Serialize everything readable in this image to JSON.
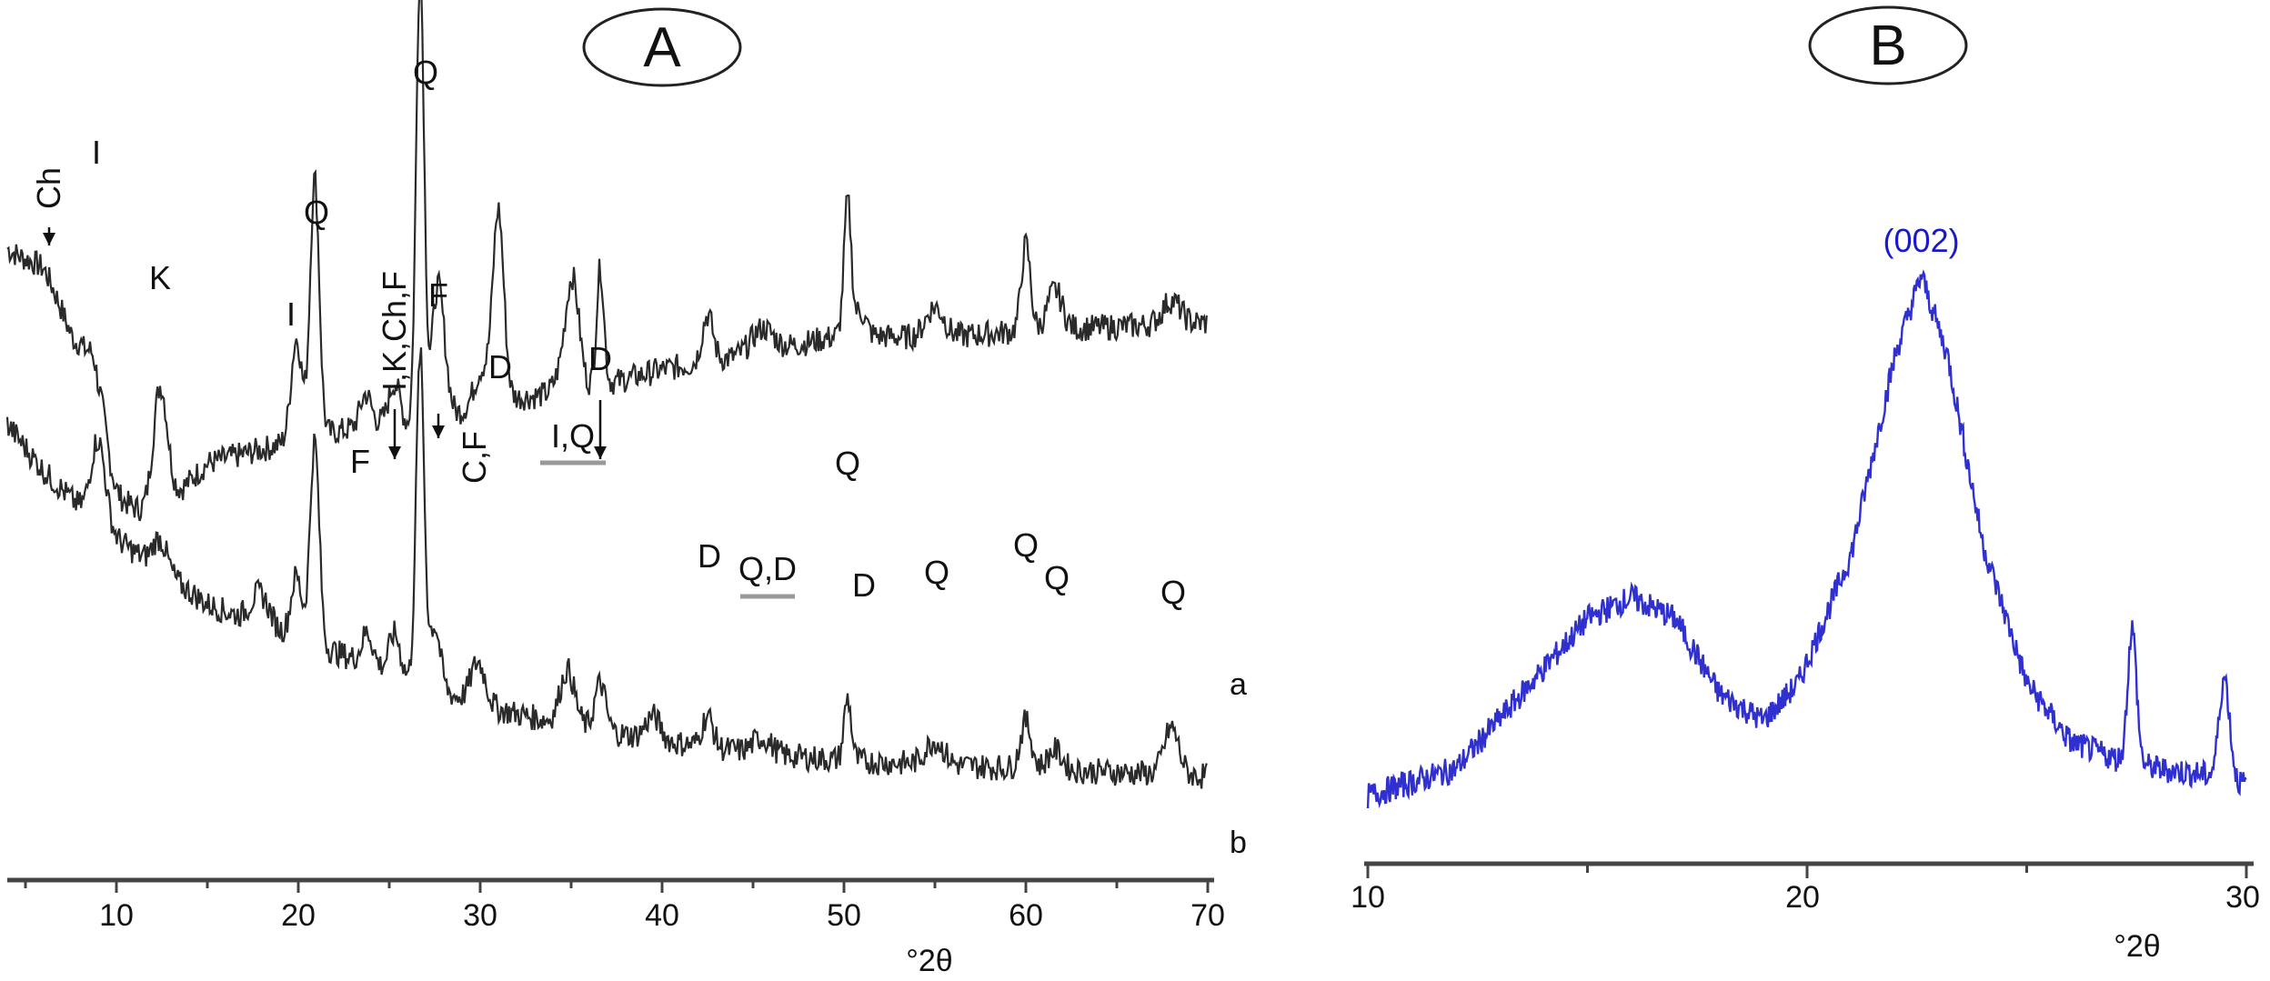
{
  "chart_data": [
    {
      "panel": "A",
      "type": "line",
      "xlabel": "°2θ",
      "xlim": [
        4,
        70
      ],
      "xticks": [
        10,
        20,
        30,
        40,
        50,
        60,
        70
      ],
      "colors": {
        "trace": "#2a2a2a",
        "axis": "#444444"
      },
      "series": [
        {
          "name": "a",
          "baseline": [
            [
              4,
              840
            ],
            [
              6,
              790
            ],
            [
              8,
              690
            ],
            [
              9,
              540
            ],
            [
              12,
              500
            ],
            [
              15,
              570
            ],
            [
              20,
              600
            ],
            [
              25,
              625
            ],
            [
              27,
              610
            ],
            [
              30,
              650
            ],
            [
              35,
              660
            ],
            [
              40,
              690
            ],
            [
              45,
              710
            ],
            [
              50,
              735
            ],
            [
              55,
              730
            ],
            [
              60,
              740
            ],
            [
              65,
              745
            ],
            [
              70,
              750
            ]
          ],
          "peaks": [
            [
              6.3,
              30,
              1.2
            ],
            [
              8.9,
              130,
              0.5
            ],
            [
              12.4,
              160,
              0.4
            ],
            [
              19.9,
              130,
              0.3
            ],
            [
              20.9,
              330,
              0.25
            ],
            [
              23.7,
              40,
              0.3
            ],
            [
              25.3,
              50,
              0.3
            ],
            [
              26.7,
              590,
              0.22
            ],
            [
              27.6,
              150,
              0.3
            ],
            [
              28.0,
              60,
              0.3
            ],
            [
              30.1,
              40,
              0.4
            ],
            [
              31.0,
              240,
              0.3
            ],
            [
              34.8,
              45,
              0.5
            ],
            [
              35.1,
              110,
              0.35
            ],
            [
              36.6,
              150,
              0.2
            ],
            [
              42.5,
              60,
              0.3
            ],
            [
              45.5,
              30,
              0.6
            ],
            [
              50.2,
              170,
              0.2
            ],
            [
              50.9,
              30,
              0.3
            ],
            [
              55.0,
              40,
              0.5
            ],
            [
              60.0,
              110,
              0.25
            ],
            [
              61.6,
              50,
              0.4
            ],
            [
              68.0,
              30,
              0.5
            ]
          ]
        },
        {
          "name": "b",
          "baseline": [
            [
              4,
              620
            ],
            [
              6,
              560
            ],
            [
              9,
              490
            ],
            [
              12,
              440
            ],
            [
              15,
              390
            ],
            [
              20,
              345
            ],
            [
              25,
              305
            ],
            [
              30,
              260
            ],
            [
              35,
              235
            ],
            [
              40,
              215
            ],
            [
              45,
              200
            ],
            [
              50,
              190
            ],
            [
              55,
              185
            ],
            [
              60,
              180
            ],
            [
              65,
              175
            ],
            [
              70,
              170
            ]
          ],
          "peaks": [
            [
              9.0,
              110,
              0.4
            ],
            [
              12.4,
              40,
              0.4
            ],
            [
              17.9,
              40,
              0.5
            ],
            [
              19.9,
              80,
              0.3
            ],
            [
              20.9,
              260,
              0.25
            ],
            [
              23.8,
              40,
              0.3
            ],
            [
              25.3,
              50,
              0.3
            ],
            [
              26.7,
              420,
              0.22
            ],
            [
              27.5,
              80,
              0.3
            ],
            [
              29.9,
              55,
              0.4
            ],
            [
              34.8,
              70,
              0.4
            ],
            [
              36.6,
              60,
              0.3
            ],
            [
              39.5,
              30,
              0.4
            ],
            [
              42.5,
              40,
              0.3
            ],
            [
              45.5,
              20,
              0.5
            ],
            [
              50.2,
              80,
              0.2
            ],
            [
              55.0,
              30,
              0.5
            ],
            [
              60.0,
              60,
              0.3
            ],
            [
              61.6,
              25,
              0.4
            ],
            [
              68.0,
              60,
              0.4
            ]
          ]
        }
      ],
      "peak_labels": [
        {
          "text": "Ch",
          "x": 6.3,
          "vertical": true,
          "arrow": true
        },
        {
          "text": "I",
          "x": 8.9
        },
        {
          "text": "K",
          "x": 12.4
        },
        {
          "text": "I",
          "x": 19.6
        },
        {
          "text": "Q",
          "x": 21.0
        },
        {
          "text": "F",
          "x": 23.4
        },
        {
          "text": "I,K,Ch,F",
          "x": 25.3,
          "vertical": true,
          "arrow": true
        },
        {
          "text": "Q",
          "x": 27.0
        },
        {
          "text": "F",
          "x": 27.7,
          "arrow": true
        },
        {
          "text": "C,F",
          "x": 29.7,
          "vertical": true
        },
        {
          "text": "D",
          "x": 31.1
        },
        {
          "text": "I,Q",
          "x": 35.1,
          "bracket": true
        },
        {
          "text": "D",
          "x": 36.6,
          "arrow": true
        },
        {
          "text": "D",
          "x": 42.6
        },
        {
          "text": "Q,D",
          "x": 45.8,
          "bracket": true
        },
        {
          "text": "Q",
          "x": 50.2
        },
        {
          "text": "D",
          "x": 51.1
        },
        {
          "text": "Q",
          "x": 55.1
        },
        {
          "text": "Q",
          "x": 60.0
        },
        {
          "text": "Q",
          "x": 61.7
        },
        {
          "text": "Q",
          "x": 68.1
        }
      ]
    },
    {
      "panel": "B",
      "type": "line",
      "xlabel": "°2θ",
      "xlim": [
        10,
        30
      ],
      "xticks": [
        10,
        20,
        30
      ],
      "colors": {
        "trace": "#1a1acc",
        "axis": "#444444"
      },
      "series": [
        {
          "baseline": [
            [
              10,
              0.03
            ],
            [
              12,
              0.08
            ],
            [
              13.5,
              0.22
            ],
            [
              15,
              0.36
            ],
            [
              16,
              0.4
            ],
            [
              17,
              0.36
            ],
            [
              18,
              0.22
            ],
            [
              19,
              0.17
            ],
            [
              19.8,
              0.24
            ],
            [
              21,
              0.48
            ],
            [
              22,
              0.85
            ],
            [
              22.6,
              1.0
            ],
            [
              23.2,
              0.85
            ],
            [
              24,
              0.5
            ],
            [
              25,
              0.24
            ],
            [
              26,
              0.13
            ],
            [
              27,
              0.1
            ],
            [
              28,
              0.08
            ],
            [
              29,
              0.07
            ],
            [
              30,
              0.05
            ]
          ],
          "peaks": [
            [
              27.4,
              0.25,
              0.1
            ],
            [
              29.5,
              0.19,
              0.12
            ]
          ]
        }
      ],
      "peak_labels": [
        {
          "text": "(002)",
          "x": 22.6
        }
      ]
    }
  ],
  "panel_a": {
    "letter": "A",
    "xlabel": "°2θ",
    "tick_labels": [
      "10",
      "20",
      "30",
      "40",
      "50",
      "60",
      "70"
    ],
    "curve_labels": [
      "a",
      "b"
    ]
  },
  "panel_b": {
    "letter": "B",
    "xlabel": "°2θ",
    "tick_labels": [
      "10",
      "20",
      "30"
    ]
  }
}
